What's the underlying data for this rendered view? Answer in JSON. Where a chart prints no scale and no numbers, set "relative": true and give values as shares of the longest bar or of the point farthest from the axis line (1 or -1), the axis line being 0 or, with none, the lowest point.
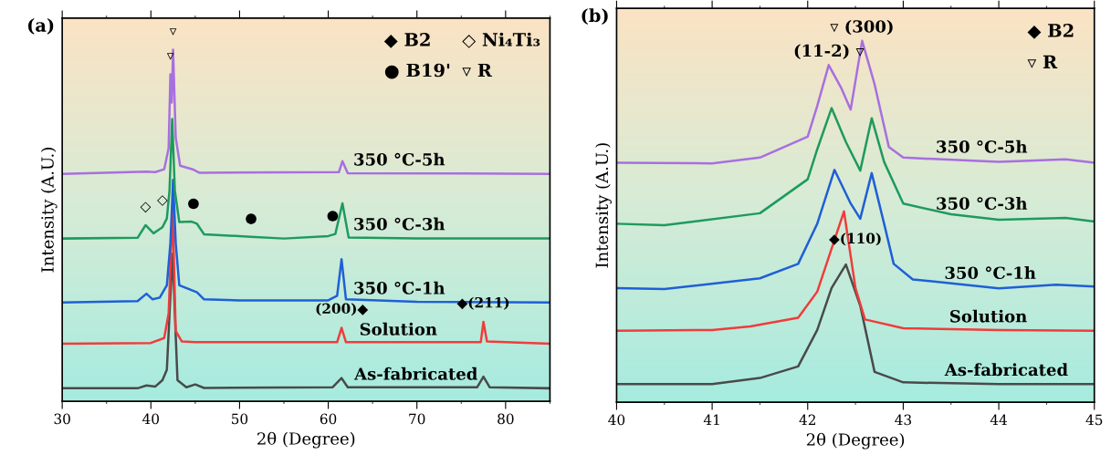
{
  "chart_data": [
    {
      "type": "line",
      "title": "(a)",
      "xlabel": "2θ (Degree)",
      "ylabel": "Intensity (A.U.)",
      "relative": true,
      "xlim": [
        30,
        85
      ],
      "xticks": [
        30,
        40,
        50,
        60,
        70,
        80
      ],
      "grid": false,
      "marker": "none",
      "line_style": "solid",
      "series": [
        {
          "color": "#4a4a4a",
          "x": [
            30,
            38.5,
            39.5,
            40.5,
            41.3,
            41.8,
            42.2,
            42.45,
            42.7,
            43.0,
            44,
            45,
            46,
            60.5,
            61.5,
            62.2,
            76.8,
            77.5,
            78.2,
            85
          ],
          "values": [
            0.037,
            0.037,
            0.045,
            0.042,
            0.06,
            0.09,
            0.3,
            0.42,
            0.25,
            0.06,
            0.04,
            0.048,
            0.038,
            0.04,
            0.066,
            0.04,
            0.04,
            0.07,
            0.04,
            0.037
          ]
        },
        {
          "color": "#f03c3c",
          "x": [
            30,
            40,
            41.5,
            42.0,
            42.45,
            42.8,
            43.5,
            45,
            61,
            61.5,
            62,
            77.2,
            77.5,
            77.9,
            85
          ],
          "values": [
            0.164,
            0.166,
            0.18,
            0.25,
            0.55,
            0.2,
            0.17,
            0.168,
            0.168,
            0.209,
            0.168,
            0.168,
            0.226,
            0.17,
            0.164
          ]
        },
        {
          "color": "#1f5fd6",
          "x": [
            30,
            38.5,
            39.5,
            40.2,
            41,
            41.8,
            42.2,
            42.5,
            42.8,
            43.2,
            44.5,
            45.2,
            46,
            50,
            60,
            61.0,
            61.5,
            62,
            70,
            85
          ],
          "values": [
            0.281,
            0.285,
            0.306,
            0.29,
            0.295,
            0.33,
            0.45,
            0.63,
            0.45,
            0.33,
            0.317,
            0.31,
            0.29,
            0.287,
            0.287,
            0.3,
            0.404,
            0.29,
            0.283,
            0.281
          ]
        },
        {
          "color": "#1e9a5e",
          "x": [
            30,
            38.5,
            39.4,
            40.3,
            41.3,
            41.8,
            42.1,
            42.4,
            42.7,
            43.2,
            44.6,
            45.2,
            46,
            51.3,
            55,
            60,
            60.8,
            61.6,
            62.3,
            70,
            85
          ],
          "values": [
            0.463,
            0.465,
            0.501,
            0.478,
            0.495,
            0.52,
            0.6,
            0.803,
            0.6,
            0.51,
            0.511,
            0.505,
            0.475,
            0.468,
            0.463,
            0.47,
            0.476,
            0.563,
            0.466,
            0.463,
            0.463
          ]
        },
        {
          "color": "#a86fe0",
          "x": [
            30,
            39.5,
            40.5,
            41.5,
            42.0,
            42.2,
            42.35,
            42.5,
            42.8,
            43.3,
            44.8,
            45.5,
            61.2,
            61.6,
            62.2,
            85
          ],
          "values": [
            0.647,
            0.653,
            0.652,
            0.66,
            0.72,
            0.93,
            0.85,
            1.0,
            0.75,
            0.67,
            0.659,
            0.65,
            0.652,
            0.683,
            0.649,
            0.647
          ]
        }
      ],
      "annotations": [
        "◆ B2",
        "◇ Ni₄Ti₃",
        "● B19'",
        "▿ R",
        {
          "text": "▿",
          "x": 42.2,
          "y": 0.93
        },
        {
          "text": "▿",
          "x": 42.5,
          "y": 1.0
        },
        {
          "text": "◇",
          "x": 39.4,
          "y": 0.501
        },
        {
          "text": "◇",
          "x": 41.3,
          "y": 0.52
        },
        {
          "text": "●",
          "x": 44.8,
          "y": 0.511
        },
        {
          "text": "●",
          "x": 51.3,
          "y": 0.468
        },
        {
          "text": "●",
          "x": 60.5,
          "y": 0.476
        },
        {
          "text": "(200)◆",
          "x": 61.5,
          "y": 0.209
        },
        {
          "text": "◆(211)",
          "x": 77.5,
          "y": 0.226
        },
        {
          "text": "350 °C-5h",
          "x": 68.0,
          "y": 0.647
        },
        {
          "text": "350 °C-3h",
          "x": 68.0,
          "y": 0.463
        },
        {
          "text": "350 °C-1h",
          "x": 68.0,
          "y": 0.281
        },
        {
          "text": "Solution",
          "x": 67.9,
          "y": 0.164
        },
        {
          "text": "As-fabricated",
          "x": 69.9,
          "y": 0.037
        }
      ]
    },
    {
      "type": "line",
      "title": "(b)",
      "xlabel": "2θ (Degree)",
      "ylabel": "Intensity (A.U.)",
      "relative": true,
      "xlim": [
        40,
        45
      ],
      "xticks": [
        40,
        41,
        42,
        43,
        44,
        45
      ],
      "grid": false,
      "marker": "none",
      "line_style": "solid",
      "series": [
        {
          "color": "#4a4a4a",
          "x": [
            40,
            41,
            41.5,
            41.9,
            42.1,
            42.25,
            42.4,
            42.55,
            42.7,
            43,
            44,
            45
          ],
          "values": [
            0.05,
            0.05,
            0.067,
            0.099,
            0.2,
            0.316,
            0.381,
            0.267,
            0.084,
            0.055,
            0.05,
            0.05
          ]
        },
        {
          "color": "#f03c3c",
          "x": [
            40,
            41,
            41.4,
            41.9,
            42.1,
            42.38,
            42.5,
            42.6,
            43,
            44,
            45
          ],
          "values": [
            0.198,
            0.2,
            0.21,
            0.234,
            0.306,
            0.528,
            0.316,
            0.229,
            0.205,
            0.2,
            0.198
          ]
        },
        {
          "color": "#1f5fd6",
          "x": [
            40,
            40.5,
            41.5,
            41.9,
            42.1,
            42.28,
            42.45,
            42.55,
            42.67,
            42.8,
            42.9,
            43.1,
            44,
            44.6,
            45
          ],
          "values": [
            0.316,
            0.313,
            0.343,
            0.383,
            0.494,
            0.643,
            0.55,
            0.508,
            0.634,
            0.494,
            0.383,
            0.34,
            0.315,
            0.325,
            0.32
          ]
        },
        {
          "color": "#1e9a5e",
          "x": [
            40,
            40.5,
            41.5,
            42.0,
            42.1,
            42.25,
            42.4,
            42.55,
            42.67,
            42.8,
            43.0,
            43.5,
            44,
            44.7,
            45
          ],
          "values": [
            0.494,
            0.49,
            0.523,
            0.617,
            0.7,
            0.814,
            0.72,
            0.641,
            0.786,
            0.665,
            0.55,
            0.52,
            0.505,
            0.51,
            0.5
          ]
        },
        {
          "color": "#a86fe0",
          "x": [
            40,
            41,
            41.5,
            42.0,
            42.1,
            42.22,
            42.35,
            42.45,
            42.57,
            42.7,
            42.85,
            43.0,
            44,
            44.7,
            45
          ],
          "values": [
            0.663,
            0.661,
            0.677,
            0.735,
            0.82,
            0.933,
            0.87,
            0.81,
            1.0,
            0.88,
            0.706,
            0.677,
            0.665,
            0.672,
            0.663
          ]
        }
      ],
      "annotations": [
        "◆ B2",
        "▿ R",
        {
          "text": "(11-2) ▿",
          "x": 42.22,
          "y": 0.933
        },
        {
          "text": "▿ (300)",
          "x": 42.57,
          "y": 1.0
        },
        {
          "text": "◆(110)",
          "x": 42.5,
          "y": 0.4
        },
        {
          "text": "350 °C-5h",
          "x": 43.82,
          "y": 0.667
        },
        {
          "text": "350 °C-3h",
          "x": 43.82,
          "y": 0.51
        },
        {
          "text": "350 °C-1h",
          "x": 43.91,
          "y": 0.318
        },
        {
          "text": "Solution",
          "x": 43.89,
          "y": 0.198
        },
        {
          "text": "As-fabricated",
          "x": 44.08,
          "y": 0.05
        }
      ]
    }
  ]
}
